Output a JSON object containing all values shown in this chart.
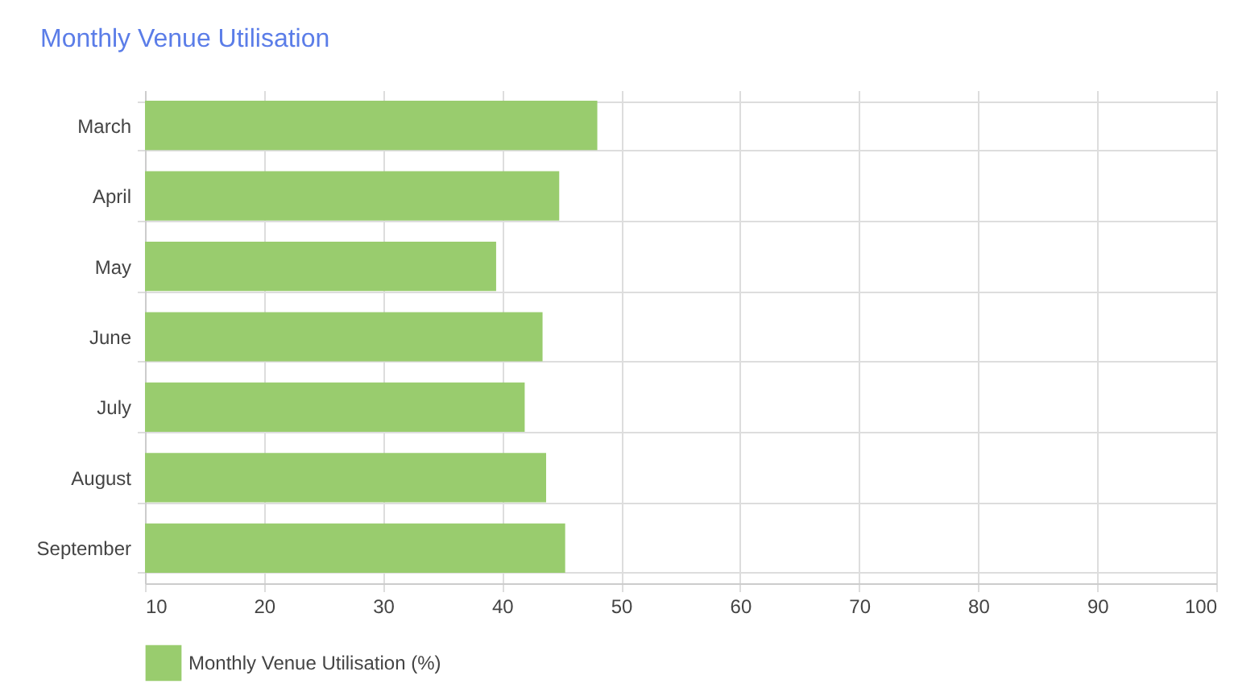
{
  "chart_data": {
    "type": "bar",
    "orientation": "horizontal",
    "title": "Monthly Venue Utilisation",
    "categories": [
      "March",
      "April",
      "May",
      "June",
      "July",
      "August",
      "September"
    ],
    "series": [
      {
        "name": "Monthly Venue Utilisation (%)",
        "color": "#99cc6e",
        "values": [
          48.0,
          44.8,
          39.5,
          43.4,
          41.9,
          43.7,
          45.3
        ]
      }
    ],
    "xlim": [
      10,
      100
    ],
    "xticks": [
      10,
      20,
      30,
      40,
      50,
      60,
      70,
      80,
      90,
      100
    ],
    "grid": true,
    "legend": "bottom"
  }
}
